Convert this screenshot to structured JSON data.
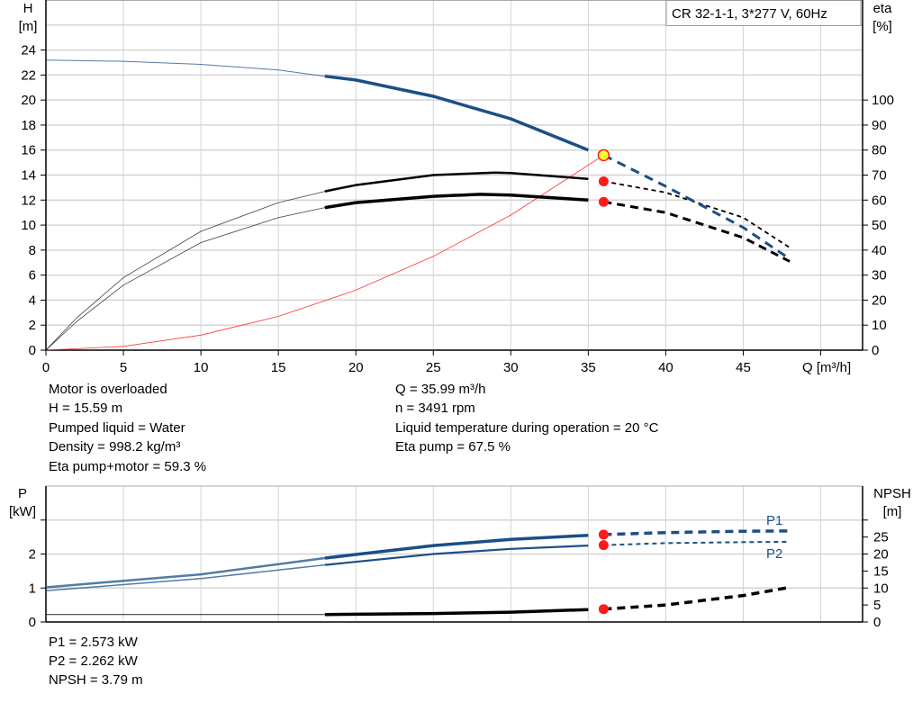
{
  "chart_data": [
    {
      "type": "line",
      "title": "CR 32-1-1, 3*277 V, 60Hz",
      "xlabel": "Q [m³/h]",
      "ylabel_left": [
        "H",
        "[m]"
      ],
      "ylabel_right": [
        "eta",
        "[%]"
      ],
      "xlim": [
        0,
        52.7
      ],
      "ylim_left": [
        0,
        28
      ],
      "ylim_right": [
        0,
        140
      ],
      "xticks": [
        "0",
        "5",
        "10",
        "15",
        "20",
        "25",
        "30",
        "35",
        "40",
        "45"
      ],
      "yticks_left": [
        "0",
        "2",
        "4",
        "6",
        "8",
        "10",
        "12",
        "14",
        "16",
        "18",
        "20",
        "22",
        "24"
      ],
      "yticks_right": [
        "0",
        "10",
        "20",
        "30",
        "40",
        "50",
        "60",
        "70",
        "80",
        "90",
        "100"
      ],
      "grid": true,
      "operating_range": [
        18,
        35
      ],
      "duty_point_q": 35.99,
      "series": [
        {
          "key": "head",
          "axis": "left",
          "color": "#1b4f86",
          "x": [
            0,
            5,
            10,
            15,
            18,
            20,
            25,
            30,
            35,
            35.99,
            40,
            45,
            48
          ],
          "y": [
            23.2,
            23.1,
            22.85,
            22.4,
            21.9,
            21.6,
            20.3,
            18.5,
            16.0,
            15.59,
            13.1,
            9.8,
            7.3
          ]
        },
        {
          "key": "eta-pump",
          "axis": "right",
          "color": "#000000",
          "x": [
            0,
            2,
            5,
            10,
            15,
            18,
            20,
            25,
            29,
            30,
            35,
            35.99,
            40,
            45,
            48
          ],
          "y": [
            0,
            13,
            29,
            47.5,
            59,
            63.5,
            66,
            70,
            71,
            70.8,
            68.5,
            67.5,
            63,
            53,
            41
          ]
        },
        {
          "key": "eta-pump-motor",
          "axis": "right",
          "color": "#000000",
          "x": [
            0,
            2,
            5,
            10,
            15,
            18,
            20,
            25,
            28,
            30,
            35,
            35.99,
            40,
            45,
            48
          ],
          "y": [
            0,
            11.5,
            26,
            43,
            53,
            57,
            59,
            61.5,
            62.3,
            62,
            60,
            59.3,
            55,
            45,
            35.5
          ]
        },
        {
          "key": "system-curve",
          "axis": "left",
          "color": "#ff3333",
          "x": [
            0,
            5,
            10,
            15,
            20,
            25,
            30,
            35.99
          ],
          "y": [
            0,
            0.3,
            1.2,
            2.7,
            4.8,
            7.5,
            10.8,
            15.59
          ]
        }
      ]
    },
    {
      "type": "line",
      "xlim": [
        0,
        52.7
      ],
      "ylabel_left": [
        "P",
        "[kW]"
      ],
      "ylabel_right": [
        "NPSH",
        "[m]"
      ],
      "ylim_left": [
        0,
        4
      ],
      "ylim_right": [
        0,
        40
      ],
      "yticks_left": [
        "0",
        "1",
        "2"
      ],
      "yticks_right": [
        "0",
        "5",
        "10",
        "15",
        "20",
        "25"
      ],
      "grid": true,
      "series": [
        {
          "key": "p1",
          "name": "P1",
          "axis": "left",
          "color": "#1b4f86",
          "x": [
            0,
            10,
            18,
            25,
            30,
            35,
            35.99,
            40,
            45,
            48
          ],
          "y": [
            1.02,
            1.4,
            1.88,
            2.25,
            2.43,
            2.55,
            2.573,
            2.63,
            2.67,
            2.68
          ]
        },
        {
          "key": "p2",
          "name": "P2",
          "axis": "left",
          "color": "#1b4f86",
          "x": [
            0,
            10,
            18,
            25,
            30,
            35,
            35.99,
            40,
            45,
            48
          ],
          "y": [
            0.92,
            1.28,
            1.68,
            2.0,
            2.15,
            2.25,
            2.262,
            2.32,
            2.35,
            2.36
          ]
        },
        {
          "key": "npsh",
          "axis": "right",
          "color": "#000000",
          "x": [
            0,
            18,
            25,
            30,
            35.99,
            40,
            45,
            48
          ],
          "y": [
            2.2,
            2.2,
            2.5,
            2.9,
            3.79,
            5.0,
            7.8,
            10.2
          ]
        }
      ]
    }
  ],
  "info": {
    "left": [
      "Motor is overloaded",
      "H = 15.59 m",
      "Pumped liquid = Water",
      "Density = 998.2 kg/m³",
      "Eta pump+motor = 59.3 %"
    ],
    "right": [
      "Q = 35.99 m³/h",
      "n = 3491 rpm",
      "Liquid temperature during operation = 20 °C",
      "Eta pump = 67.5 %"
    ],
    "bottom": [
      "P1 = 2.573 kW",
      "P2 = 2.262 kW",
      "NPSH = 3.79 m"
    ]
  }
}
